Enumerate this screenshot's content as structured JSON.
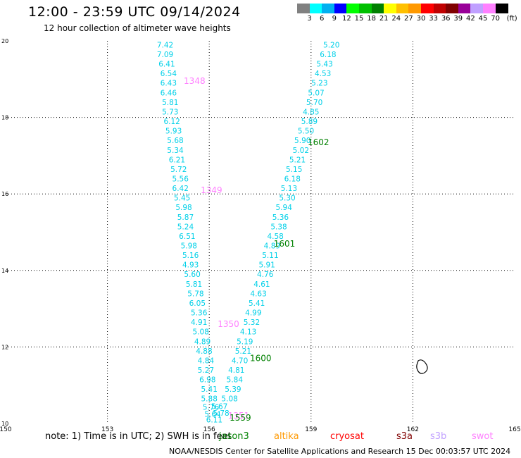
{
  "header": {
    "title": "12:00 - 23:59 UTC 09/14/2024",
    "subtitle": "12 hour collection of altimeter wave heights"
  },
  "colorbar": {
    "unit": "(ft)",
    "colors": [
      "#808080",
      "#00ffff",
      "#00b0f0",
      "#0000ff",
      "#00ff00",
      "#00c000",
      "#008000",
      "#ffff00",
      "#ffc000",
      "#ff9900",
      "#ff0000",
      "#c00000",
      "#800000",
      "#990099",
      "#c0a0ff",
      "#ff80ff",
      "#000000"
    ],
    "labels": [
      "3",
      "6",
      "9",
      "12",
      "15",
      "18",
      "21",
      "24",
      "27",
      "30",
      "33",
      "36",
      "39",
      "42",
      "45",
      "70"
    ]
  },
  "footer": {
    "note_prefix": "note:  1) Time is in UTC;  2) SWH is in feet",
    "missions": [
      {
        "name": "jason3",
        "color": "#008000"
      },
      {
        "name": "altika",
        "color": "#ff9900"
      },
      {
        "name": "cryosat",
        "color": "#ff0000"
      },
      {
        "name": "s3a",
        "color": "#800000"
      },
      {
        "name": "s3b",
        "color": "#c0a0ff"
      },
      {
        "name": "swot",
        "color": "#ff80ff"
      }
    ],
    "credit": "NOAA/NESDIS Center for Satellite Applications and Research    15 Dec 00:03:57 UTC 2024"
  },
  "chart_data": {
    "type": "scatter",
    "xlim": [
      150,
      165
    ],
    "ylim": [
      10,
      20
    ],
    "xticks": [
      150,
      153,
      156,
      159,
      162,
      165
    ],
    "yticks": [
      10,
      12,
      14,
      16,
      18,
      20
    ],
    "grid": true,
    "series": [
      {
        "color": "#00d0e8",
        "points": [
          {
            "x": 154.7,
            "y": 19.9,
            "label": "7.42"
          },
          {
            "x": 154.7,
            "y": 19.65,
            "label": "7.09"
          },
          {
            "x": 154.75,
            "y": 19.4,
            "label": "6.41"
          },
          {
            "x": 154.8,
            "y": 19.15,
            "label": "6.54"
          },
          {
            "x": 154.8,
            "y": 18.9,
            "label": "6.43"
          },
          {
            "x": 154.8,
            "y": 18.65,
            "label": "6.46"
          },
          {
            "x": 154.85,
            "y": 18.4,
            "label": "5.81"
          },
          {
            "x": 154.85,
            "y": 18.15,
            "label": "5.73"
          },
          {
            "x": 154.9,
            "y": 17.9,
            "label": "6.12"
          },
          {
            "x": 154.95,
            "y": 17.65,
            "label": "5.93"
          },
          {
            "x": 155.0,
            "y": 17.4,
            "label": "5.68"
          },
          {
            "x": 155.0,
            "y": 17.15,
            "label": "5.34"
          },
          {
            "x": 155.05,
            "y": 16.9,
            "label": "6.21"
          },
          {
            "x": 155.1,
            "y": 16.65,
            "label": "5.72"
          },
          {
            "x": 155.15,
            "y": 16.4,
            "label": "5.56"
          },
          {
            "x": 155.15,
            "y": 16.15,
            "label": "6.42"
          },
          {
            "x": 155.2,
            "y": 15.9,
            "label": "5.45"
          },
          {
            "x": 155.25,
            "y": 15.65,
            "label": "5.98"
          },
          {
            "x": 155.3,
            "y": 15.4,
            "label": "5.87"
          },
          {
            "x": 155.3,
            "y": 15.15,
            "label": "5.24"
          },
          {
            "x": 155.35,
            "y": 14.9,
            "label": "6.51"
          },
          {
            "x": 155.4,
            "y": 14.65,
            "label": "5.98"
          },
          {
            "x": 155.45,
            "y": 14.4,
            "label": "5.16"
          },
          {
            "x": 155.45,
            "y": 14.15,
            "label": "4.93"
          },
          {
            "x": 155.5,
            "y": 13.9,
            "label": "5.60"
          },
          {
            "x": 155.55,
            "y": 13.65,
            "label": "5.81"
          },
          {
            "x": 155.6,
            "y": 13.4,
            "label": "5.78"
          },
          {
            "x": 155.65,
            "y": 13.15,
            "label": "6.05"
          },
          {
            "x": 155.7,
            "y": 12.9,
            "label": "5.36"
          },
          {
            "x": 155.7,
            "y": 12.65,
            "label": "4.91"
          },
          {
            "x": 155.75,
            "y": 12.4,
            "label": "5.08"
          },
          {
            "x": 155.8,
            "y": 12.15,
            "label": "4.89"
          },
          {
            "x": 155.85,
            "y": 11.9,
            "label": "4.88"
          },
          {
            "x": 155.9,
            "y": 11.65,
            "label": "4.84"
          },
          {
            "x": 155.9,
            "y": 11.4,
            "label": "5.27"
          },
          {
            "x": 155.95,
            "y": 11.15,
            "label": "6.98"
          },
          {
            "x": 156.0,
            "y": 10.9,
            "label": "5.41"
          },
          {
            "x": 156.0,
            "y": 10.65,
            "label": "5.88"
          },
          {
            "x": 156.05,
            "y": 10.43,
            "label": "5.76"
          },
          {
            "x": 156.1,
            "y": 10.25,
            "label": "5.64"
          },
          {
            "x": 156.15,
            "y": 10.1,
            "label": "6.11"
          },
          {
            "x": 156.3,
            "y": 10.45,
            "label": "5.67"
          },
          {
            "x": 156.35,
            "y": 10.28,
            "label": "5.78"
          },
          {
            "x": 156.6,
            "y": 10.65,
            "label": "5.08"
          },
          {
            "x": 156.7,
            "y": 10.9,
            "label": "5.39"
          },
          {
            "x": 156.75,
            "y": 11.15,
            "label": "5.84"
          },
          {
            "x": 156.8,
            "y": 11.4,
            "label": "4.81"
          },
          {
            "x": 156.9,
            "y": 11.65,
            "label": "4.70"
          },
          {
            "x": 157.0,
            "y": 11.9,
            "label": "5.21"
          },
          {
            "x": 157.05,
            "y": 12.15,
            "label": "5.19"
          },
          {
            "x": 157.15,
            "y": 12.4,
            "label": "4.13"
          },
          {
            "x": 157.25,
            "y": 12.65,
            "label": "5.32"
          },
          {
            "x": 157.3,
            "y": 12.9,
            "label": "4.99"
          },
          {
            "x": 157.4,
            "y": 13.15,
            "label": "5.41"
          },
          {
            "x": 157.45,
            "y": 13.4,
            "label": "4.63"
          },
          {
            "x": 157.55,
            "y": 13.65,
            "label": "4.61"
          },
          {
            "x": 157.65,
            "y": 13.9,
            "label": "4.76"
          },
          {
            "x": 157.7,
            "y": 14.15,
            "label": "5.91"
          },
          {
            "x": 157.8,
            "y": 14.4,
            "label": "5.11"
          },
          {
            "x": 157.85,
            "y": 14.65,
            "label": "4.89"
          },
          {
            "x": 157.95,
            "y": 14.9,
            "label": "4.58"
          },
          {
            "x": 158.05,
            "y": 15.15,
            "label": "5.38"
          },
          {
            "x": 158.1,
            "y": 15.4,
            "label": "5.36"
          },
          {
            "x": 158.2,
            "y": 15.65,
            "label": "5.94"
          },
          {
            "x": 158.3,
            "y": 15.9,
            "label": "5.30"
          },
          {
            "x": 158.35,
            "y": 16.15,
            "label": "5.13"
          },
          {
            "x": 158.45,
            "y": 16.4,
            "label": "6.18"
          },
          {
            "x": 158.5,
            "y": 16.65,
            "label": "5.15"
          },
          {
            "x": 158.6,
            "y": 16.9,
            "label": "5.21"
          },
          {
            "x": 158.7,
            "y": 17.15,
            "label": "5.02"
          },
          {
            "x": 158.75,
            "y": 17.4,
            "label": "5.90"
          },
          {
            "x": 158.85,
            "y": 17.65,
            "label": "5.50"
          },
          {
            "x": 158.95,
            "y": 17.9,
            "label": "5.89"
          },
          {
            "x": 159.0,
            "y": 18.15,
            "label": "4.85"
          },
          {
            "x": 159.1,
            "y": 18.4,
            "label": "5.70"
          },
          {
            "x": 159.15,
            "y": 18.65,
            "label": "5.07"
          },
          {
            "x": 159.25,
            "y": 18.9,
            "label": "5.23"
          },
          {
            "x": 159.35,
            "y": 19.15,
            "label": "4.53"
          },
          {
            "x": 159.4,
            "y": 19.4,
            "label": "5.43"
          },
          {
            "x": 159.5,
            "y": 19.65,
            "label": "6.18"
          },
          {
            "x": 159.6,
            "y": 19.9,
            "label": "5.20"
          }
        ]
      }
    ],
    "pass_labels": [
      {
        "text": "1348",
        "x": 155.25,
        "y": 18.95,
        "color": "#ff80ff"
      },
      {
        "text": "1349",
        "x": 155.75,
        "y": 16.1,
        "color": "#ff80ff"
      },
      {
        "text": "1350",
        "x": 156.25,
        "y": 12.6,
        "color": "#ff80ff"
      },
      {
        "text": "1351",
        "x": 156.55,
        "y": 10.2,
        "color": "#ff80ff"
      },
      {
        "text": "1559",
        "x": 156.6,
        "y": 10.15,
        "color": "#008000"
      },
      {
        "text": "1600",
        "x": 157.2,
        "y": 11.7,
        "color": "#008000"
      },
      {
        "text": "1601",
        "x": 157.9,
        "y": 14.7,
        "color": "#008000"
      },
      {
        "text": "1602",
        "x": 158.9,
        "y": 17.35,
        "color": "#008000"
      }
    ]
  }
}
